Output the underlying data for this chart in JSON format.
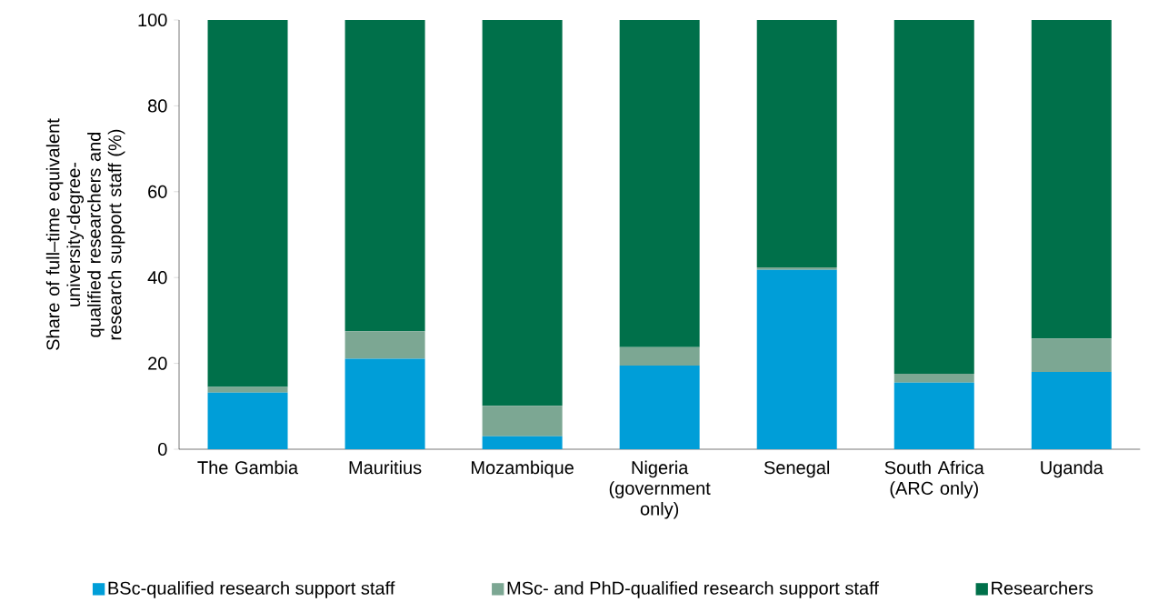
{
  "chart_data": {
    "type": "bar",
    "stacked": true,
    "ylabel": "Share of full–time equivalent university-degree-qualified researchers and research support staff (%)",
    "categories": [
      "The Gambia",
      "Mauritius",
      "Mozambique",
      "Nigeria (government only)",
      "Senegal",
      "South Africa (ARC only)",
      "Uganda"
    ],
    "series": [
      {
        "name": "BSc-qualified research support staff",
        "color": "#009ed8",
        "values": [
          13.2,
          21.1,
          3.0,
          19.5,
          41.8,
          15.5,
          18.0
        ]
      },
      {
        "name": "MSc- and PhD-qualified research support staff",
        "color": "#7ca793",
        "values": [
          1.3,
          6.4,
          7.1,
          4.3,
          0.6,
          2.1,
          7.8
        ]
      },
      {
        "name": "Researchers",
        "color": "#00704a",
        "values": [
          85.5,
          72.5,
          89.9,
          76.2,
          57.6,
          82.4,
          74.2
        ]
      }
    ],
    "ylim": [
      0,
      100
    ],
    "yticks": [
      0,
      20,
      40,
      60,
      80,
      100
    ],
    "grid": false,
    "legend": "bottom"
  }
}
